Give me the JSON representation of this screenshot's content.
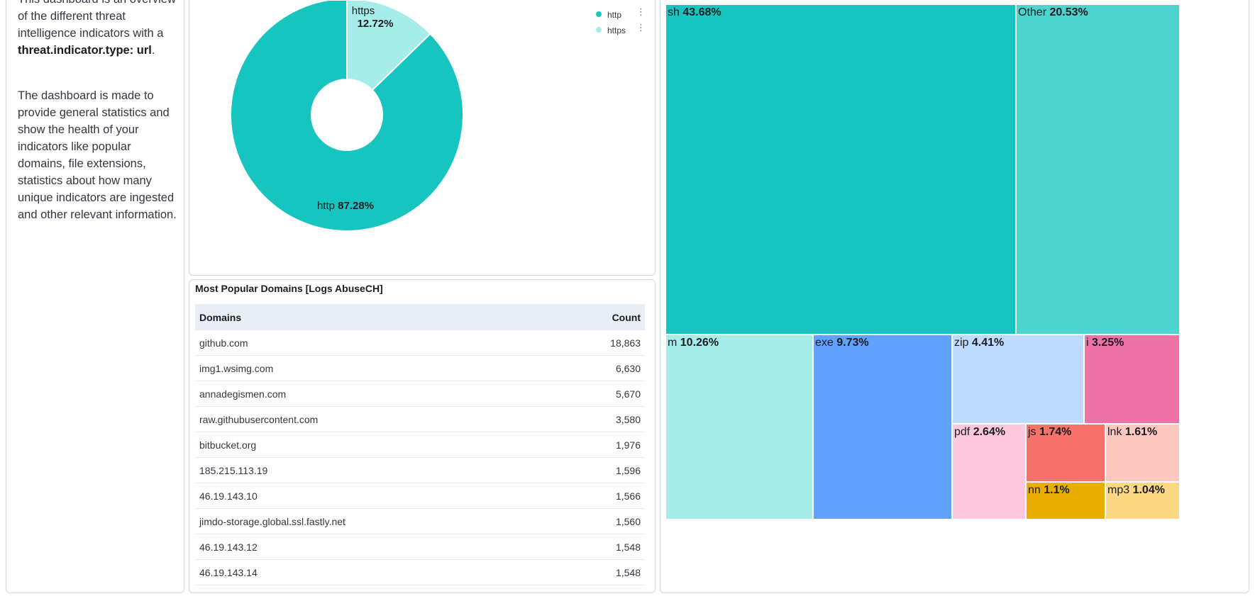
{
  "markdown": {
    "p1_pre": "This dashboard is an overview of the different threat intelligence indicators with a ",
    "p1_bold": "threat.indicator.type: url",
    "p1_post": ".",
    "p2": "The dashboard is made to provide general statistics and show the health of your indicators like popular domains, file extensions, statistics about how many unique indicators are ingested and other relevant information."
  },
  "pie": {
    "colors": {
      "http": "#16c5c0",
      "https": "#a6edea"
    },
    "legend": [
      {
        "label": "http"
      },
      {
        "label": "https"
      }
    ],
    "slices": [
      {
        "name": "http",
        "value": 87.28,
        "pct_label": "87.28%"
      },
      {
        "name": "https",
        "value": 12.72,
        "pct_label": "12.72%"
      }
    ]
  },
  "table": {
    "title": "Most Popular Domains [Logs AbuseCH]",
    "columns": [
      "Domains",
      "Count"
    ],
    "rows": [
      {
        "domain": "github.com",
        "count": "18,863"
      },
      {
        "domain": "img1.wsimg.com",
        "count": "6,630"
      },
      {
        "domain": "annadegismen.com",
        "count": "5,670"
      },
      {
        "domain": "raw.githubusercontent.com",
        "count": "3,580"
      },
      {
        "domain": "bitbucket.org",
        "count": "1,976"
      },
      {
        "domain": "185.215.113.19",
        "count": "1,596"
      },
      {
        "domain": "46.19.143.10",
        "count": "1,566"
      },
      {
        "domain": "jimdo-storage.global.ssl.fastly.net",
        "count": "1,560"
      },
      {
        "domain": "46.19.143.12",
        "count": "1,548"
      },
      {
        "domain": "46.19.143.14",
        "count": "1,548"
      }
    ]
  },
  "chart_data": {
    "type": "treemap",
    "title": "",
    "items": [
      {
        "name": "sh",
        "value": 43.68,
        "label": "43.68%",
        "color": "#16c5c0"
      },
      {
        "name": "Other",
        "value": 20.53,
        "label": "20.53%",
        "color": "#4dd4ce"
      },
      {
        "name": "m",
        "value": 10.26,
        "label": "10.26%",
        "color": "#a6edea"
      },
      {
        "name": "exe",
        "value": 9.73,
        "label": "9.73%",
        "color": "#61a2ff"
      },
      {
        "name": "zip",
        "value": 4.41,
        "label": "4.41%",
        "color": "#bfdbff"
      },
      {
        "name": "i",
        "value": 3.25,
        "label": "3.25%",
        "color": "#ee72a6"
      },
      {
        "name": "pdf",
        "value": 2.64,
        "label": "2.64%",
        "color": "#fdc7dc"
      },
      {
        "name": "js",
        "value": 1.74,
        "label": "1.74%",
        "color": "#f6726a"
      },
      {
        "name": "lnk",
        "value": 1.61,
        "label": "1.61%",
        "color": "#fec8c0"
      },
      {
        "name": "nn",
        "value": 1.1,
        "label": "1.1%",
        "color": "#eaae01"
      },
      {
        "name": "mp3",
        "value": 1.04,
        "label": "1.04%",
        "color": "#fcd883"
      }
    ]
  }
}
